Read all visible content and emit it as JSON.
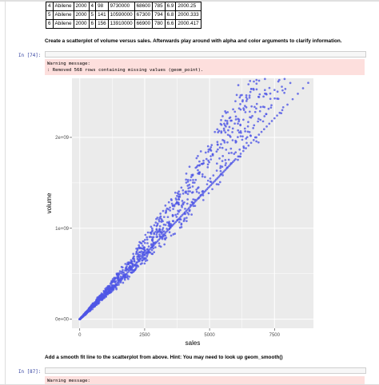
{
  "table": {
    "rows": [
      [
        "4",
        "Abilene",
        "2000",
        "4",
        "98",
        "9730000",
        "68600",
        "785",
        "6.9",
        "2000.25"
      ],
      [
        "5",
        "Abilene",
        "2000",
        "5",
        "141",
        "10590000",
        "67300",
        "794",
        "6.8",
        "2000.333"
      ],
      [
        "6",
        "Abilene",
        "2000",
        "6",
        "156",
        "13910000",
        "66900",
        "780",
        "6.6",
        "2000.417"
      ]
    ]
  },
  "cells": {
    "markdown_1": "Create a scatterplot of volume versus sales. Afterwards play around with alpha and color arguments to clarify information.",
    "prompt_74": "In [74]:",
    "warning_1_line1": "Warning message:",
    "warning_1_line2": ": Removed 568 rows containing missing values (geom_point).",
    "markdown_2": "Add a smooth fit line to the scatterplot from above. Hint: You may need to look up geom_smooth()",
    "prompt_87": "In [87]:",
    "warning_2_line1": "Warning message:"
  },
  "chart_data": {
    "type": "scatter",
    "xlabel": "sales",
    "ylabel": "volume",
    "xlim": [
      -300,
      9000
    ],
    "ylim": [
      -100000000,
      2650000000
    ],
    "x_ticks": [
      0,
      2500,
      5000,
      7500
    ],
    "x_tick_labels": [
      "0",
      "2500",
      "5000",
      "7500"
    ],
    "y_ticks": [
      0,
      1000000000,
      2000000000
    ],
    "y_tick_labels": [
      "0e+00",
      "1e+09",
      "2e+09"
    ],
    "grid": true,
    "point_color": "#4f56e6",
    "panel_background": "#ebebeb",
    "x": [
      20,
      60,
      100,
      150,
      200,
      250,
      300,
      350,
      400,
      450,
      500,
      550,
      600,
      650,
      700,
      750,
      800,
      850,
      900,
      950,
      1000,
      1050,
      1100,
      1150,
      1200,
      1250,
      1300,
      1350,
      1400,
      1450,
      1500,
      1550,
      1600,
      1650,
      1700,
      1750,
      1800,
      1850,
      1900,
      1950,
      2000,
      2050,
      2100,
      2150,
      2200,
      2250,
      2300,
      2350,
      2400,
      2450,
      2500,
      2550,
      2600,
      2650,
      2700,
      2750,
      2800,
      2850,
      2900,
      2950,
      3000,
      3050,
      3100,
      3150,
      3200,
      3250,
      3300,
      3350,
      3400,
      3450,
      3500,
      3550,
      3600,
      3650,
      3700,
      3750,
      3800,
      3850,
      3900,
      3950,
      4000,
      4050,
      4100,
      4150,
      4200,
      4250,
      4300,
      4350,
      4400,
      4450,
      4500,
      4550,
      4600,
      4650,
      4700,
      4750,
      4800,
      4850,
      4900,
      4950,
      5000,
      5050,
      5100,
      5150,
      5200,
      5250,
      5300,
      5350,
      5400,
      5450,
      5500,
      5550,
      5600,
      5650,
      5700,
      5750,
      5800,
      5850,
      5900,
      5950,
      6000,
      6100,
      6200,
      6300,
      6400,
      6500,
      6600,
      6700,
      6800,
      6900,
      7000,
      7100,
      7200,
      7300,
      7400,
      7500,
      7600,
      7700,
      7800,
      8000,
      8200,
      8400,
      8600,
      8800
    ],
    "y": [
      5000000,
      15000000,
      25000000,
      40000000,
      55000000,
      70000000,
      80000000,
      95000000,
      110000000,
      125000000,
      140000000,
      150000000,
      165000000,
      180000000,
      190000000,
      205000000,
      220000000,
      235000000,
      245000000,
      260000000,
      275000000,
      290000000,
      300000000,
      315000000,
      330000000,
      345000000,
      360000000,
      370000000,
      385000000,
      400000000,
      415000000,
      430000000,
      445000000,
      460000000,
      470000000,
      485000000,
      500000000,
      515000000,
      530000000,
      545000000,
      560000000,
      575000000,
      590000000,
      605000000,
      620000000,
      635000000,
      650000000,
      665000000,
      680000000,
      695000000,
      710000000,
      725000000,
      740000000,
      755000000,
      770000000,
      785000000,
      800000000,
      815000000,
      830000000,
      845000000,
      860000000,
      875000000,
      890000000,
      905000000,
      920000000,
      935000000,
      950000000,
      965000000,
      980000000,
      995000000,
      1010000000,
      1025000000,
      1040000000,
      1055000000,
      1070000000,
      1085000000,
      1100000000,
      1115000000,
      1130000000,
      1145000000,
      1160000000,
      1175000000,
      1190000000,
      1205000000,
      1220000000,
      1235000000,
      1250000000,
      1265000000,
      1280000000,
      1295000000,
      1310000000,
      1325000000,
      1340000000,
      1355000000,
      1370000000,
      1385000000,
      1400000000,
      1415000000,
      1430000000,
      1445000000,
      1460000000,
      1475000000,
      1490000000,
      1505000000,
      1520000000,
      1535000000,
      1550000000,
      1565000000,
      1580000000,
      1595000000,
      1610000000,
      1625000000,
      1640000000,
      1655000000,
      1670000000,
      1685000000,
      1700000000,
      1715000000,
      1730000000,
      1745000000,
      1760000000,
      1790000000,
      1820000000,
      1850000000,
      1880000000,
      1910000000,
      1940000000,
      1970000000,
      2000000000,
      2030000000,
      2060000000,
      2090000000,
      2120000000,
      2150000000,
      2180000000,
      2210000000,
      2240000000,
      2270000000,
      2300000000,
      2360000000,
      2420000000,
      2480000000,
      2540000000,
      2600000000
    ]
  }
}
